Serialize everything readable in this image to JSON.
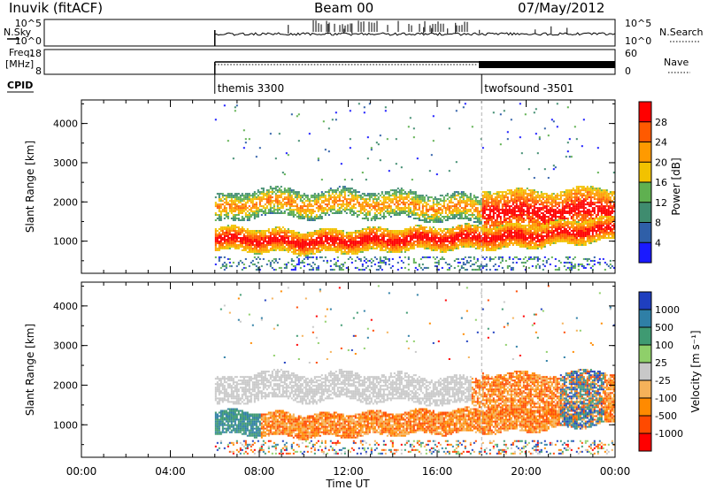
{
  "header": {
    "station": "Inuvik (fitACF)",
    "beam": "Beam 00",
    "date": "07/May/2012"
  },
  "noise_panel": {
    "left_label": "N.Sky",
    "left_ticks": [
      "10^5",
      "10^0"
    ],
    "right_ticks": [
      "10^5",
      "10^0"
    ],
    "right_label": "N.Search"
  },
  "freq_panel": {
    "left_label_line1": "Freq.",
    "left_label_line2": "[MHz]",
    "left_ticks": [
      "18",
      "8"
    ],
    "right_ticks": [
      "60",
      "0"
    ],
    "right_label": "Nave"
  },
  "cpid": {
    "label": "CPID",
    "modes": [
      {
        "name": "themis 3300",
        "start_hour": 6.0
      },
      {
        "name": "twofsound -3501",
        "start_hour": 18.0
      }
    ]
  },
  "colors": {
    "power_scale": [
      "#1a1aff",
      "#2f5fa8",
      "#3f8c6f",
      "#5fb050",
      "#f2c200",
      "#ff9a00",
      "#ff5a00",
      "#ff0000"
    ],
    "velocity_scale": [
      "#ff0000",
      "#ff4a00",
      "#ff8a00",
      "#f5b25a",
      "#c8c8c8",
      "#8fcf6a",
      "#3f9a72",
      "#2f7fa6",
      "#1f3fbf"
    ]
  },
  "chart_data": [
    {
      "type": "heatmap",
      "title": "Power",
      "xlabel": "Time UT",
      "ylabel": "Slant Range [km]",
      "xlim": [
        0,
        24
      ],
      "ylim": [
        180,
        4600
      ],
      "x_tick_labels": [
        "00:00",
        "04:00",
        "08:00",
        "12:00",
        "16:00",
        "20:00",
        "00:00"
      ],
      "x_tick_hours": [
        0,
        4,
        8,
        12,
        16,
        20,
        24
      ],
      "y_ticks": [
        1000,
        2000,
        3000,
        4000
      ],
      "colorbar": {
        "label": "Power [dB]",
        "ticks": [
          "4",
          "8",
          "12",
          "16",
          "20",
          "24",
          "28"
        ],
        "range": [
          0,
          32
        ]
      },
      "data_start_hour": 6.0,
      "bands": [
        {
          "name": "lower",
          "center_range": [
            1050,
            1000,
            950,
            980,
            1050,
            1100,
            1300
          ],
          "hours": [
            6,
            8,
            10,
            12,
            16,
            20,
            24
          ],
          "thickness": 300,
          "power": 26
        },
        {
          "name": "upper",
          "center_range": [
            1750,
            2000,
            1900,
            1950,
            1850,
            1700,
            1800
          ],
          "hours": [
            6,
            8,
            10,
            12,
            16,
            20,
            24
          ],
          "thickness": 350,
          "power": 18
        }
      ]
    },
    {
      "type": "heatmap",
      "title": "Velocity",
      "xlabel": "Time UT",
      "ylabel": "Slant Range [km]",
      "xlim": [
        0,
        24
      ],
      "ylim": [
        180,
        4600
      ],
      "x_tick_labels": [
        "00:00",
        "04:00",
        "08:00",
        "12:00",
        "16:00",
        "20:00",
        "00:00"
      ],
      "x_tick_hours": [
        0,
        4,
        8,
        12,
        16,
        20,
        24
      ],
      "y_ticks": [
        1000,
        2000,
        3000,
        4000
      ],
      "colorbar": {
        "label": "Velocity [m s⁻¹]",
        "ticks": [
          "1000",
          "500",
          "100",
          "25",
          "-25",
          "-100",
          "-500",
          "-1000"
        ],
        "range": [
          -1000,
          1000
        ]
      },
      "data_start_hour": 6.0
    }
  ]
}
